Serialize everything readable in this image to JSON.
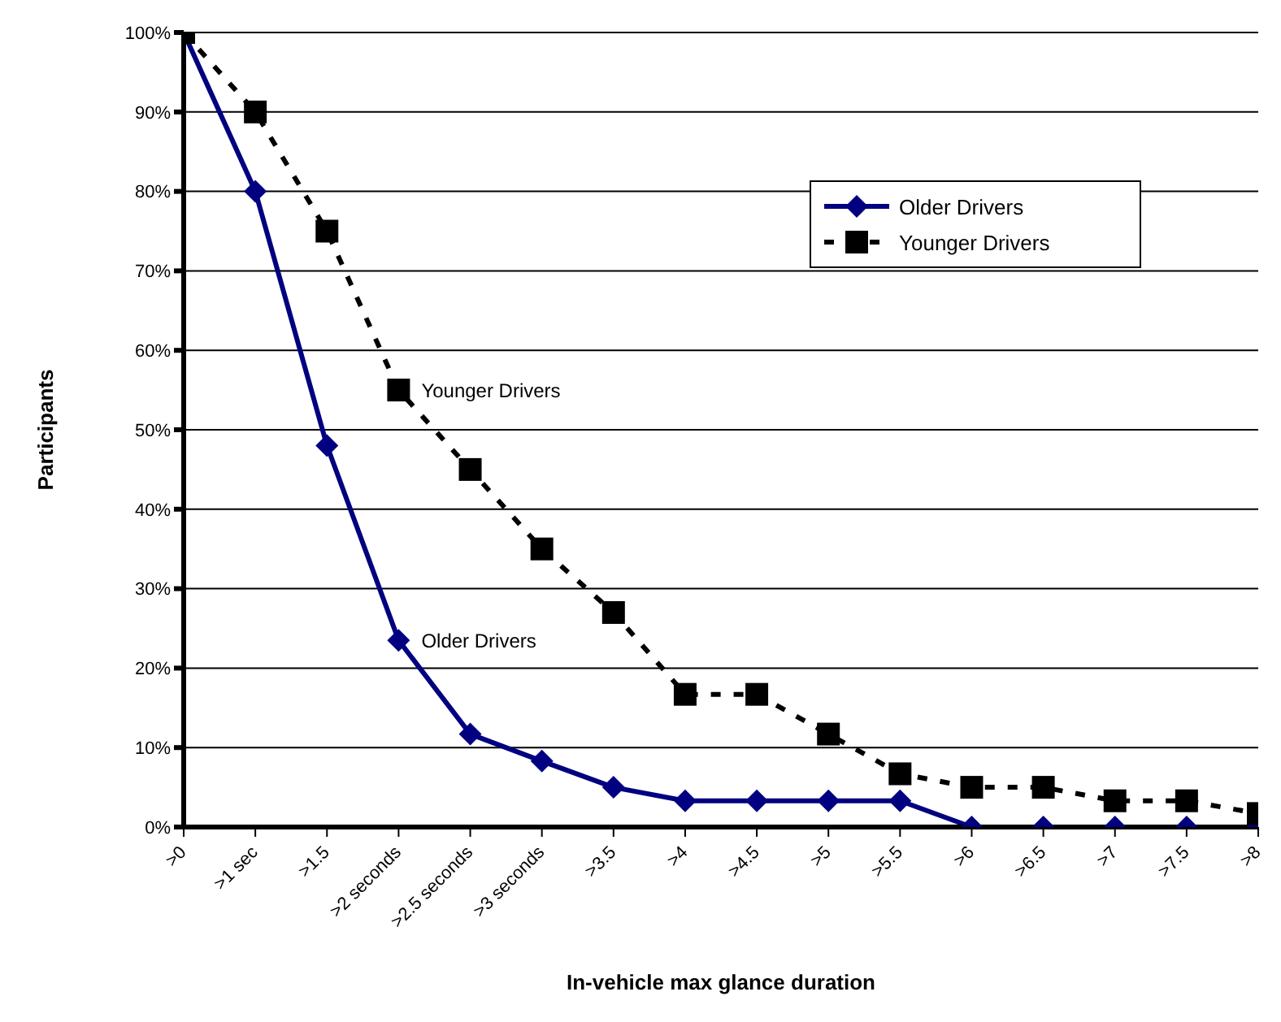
{
  "chart_data": {
    "type": "line",
    "xlabel": "In-vehicle max glance duration",
    "ylabel": "Participants",
    "categories": [
      ">0",
      ">1 sec",
      ">1.5",
      ">2 seconds",
      ">2.5 seconds",
      ">3 seconds",
      ">3.5",
      ">4",
      ">4.5",
      ">5",
      ">5.5",
      ">6",
      ">6.5",
      ">7",
      ">7.5",
      ">8"
    ],
    "series": [
      {
        "name": "Older Drivers",
        "color": "#000080",
        "marker": "diamond",
        "line_style": "solid",
        "values": [
          100,
          80,
          48,
          23.5,
          11.7,
          8.3,
          5,
          3.3,
          3.3,
          3.3,
          3.3,
          0,
          0,
          0,
          0,
          0
        ]
      },
      {
        "name": "Younger Drivers",
        "color": "#000000",
        "marker": "square",
        "line_style": "dotted",
        "values": [
          100,
          90,
          75,
          55,
          45,
          35,
          27,
          16.7,
          16.7,
          11.7,
          6.7,
          5,
          5,
          3.3,
          3.3,
          1.7
        ]
      }
    ],
    "annotations": [
      {
        "text": "Younger Drivers",
        "x": ">2 seconds",
        "y": 55
      },
      {
        "text": "Older Drivers",
        "x": ">2 seconds",
        "y": 23.5
      }
    ],
    "ylim": [
      0,
      100
    ],
    "yticks": [
      {
        "value": 0,
        "label": "0%"
      },
      {
        "value": 10,
        "label": "10%"
      },
      {
        "value": 20,
        "label": "20%"
      },
      {
        "value": 30,
        "label": "30%"
      },
      {
        "value": 40,
        "label": "40%"
      },
      {
        "value": 50,
        "label": "50%"
      },
      {
        "value": 60,
        "label": "60%"
      },
      {
        "value": 70,
        "label": "70%"
      },
      {
        "value": 80,
        "label": "80%"
      },
      {
        "value": 90,
        "label": "90%"
      },
      {
        "value": 100,
        "label": "100%"
      }
    ],
    "grid": "y",
    "legend": "top right"
  }
}
